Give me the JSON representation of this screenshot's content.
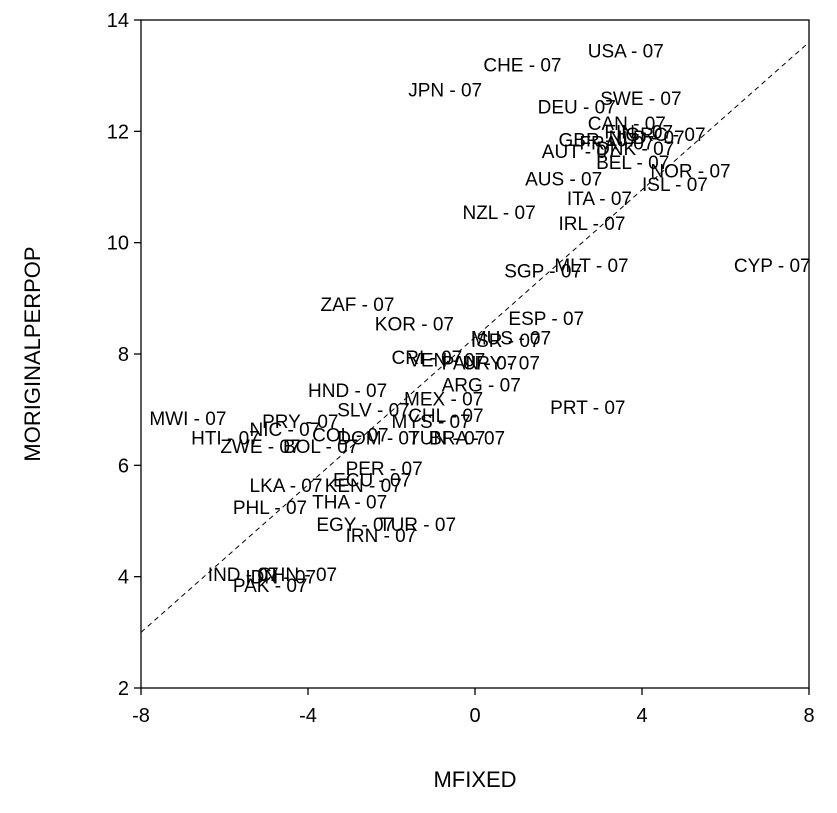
{
  "chart_data": {
    "type": "scatter",
    "xlabel": "MFIXED",
    "ylabel": "MORIGINALPERPOP",
    "xlim": [
      -8,
      8
    ],
    "ylim": [
      2,
      14
    ],
    "xticks": [
      -8,
      -4,
      0,
      4,
      8
    ],
    "yticks": [
      2,
      4,
      6,
      8,
      10,
      12,
      14
    ],
    "grid": false,
    "markers": "text labels",
    "reference_line": {
      "style": "dashed",
      "from": [
        -8,
        3.0
      ],
      "to": [
        8,
        13.6
      ]
    },
    "points": [
      {
        "label": "USA - 07",
        "x": 2.7,
        "y": 13.45
      },
      {
        "label": "CHE - 07",
        "x": 0.2,
        "y": 13.2
      },
      {
        "label": "JPN - 07",
        "x": -1.6,
        "y": 12.75
      },
      {
        "label": "SWE - 07",
        "x": 3.0,
        "y": 12.6
      },
      {
        "label": "DEU - 07",
        "x": 1.5,
        "y": 12.45
      },
      {
        "label": "CAN - 07",
        "x": 2.7,
        "y": 12.15
      },
      {
        "label": "FIN - 07",
        "x": 3.1,
        "y": 12.0
      },
      {
        "label": "GRC - 07",
        "x": 3.6,
        "y": 11.95
      },
      {
        "label": "NLD - 07",
        "x": 3.2,
        "y": 11.9
      },
      {
        "label": "GBR - 07",
        "x": 2.0,
        "y": 11.85
      },
      {
        "label": "FRA - 07",
        "x": 2.5,
        "y": 11.8
      },
      {
        "label": "AUT - 07",
        "x": 1.6,
        "y": 11.65
      },
      {
        "label": "DNK - 07",
        "x": 2.9,
        "y": 11.7
      },
      {
        "label": "BEL - 07",
        "x": 2.9,
        "y": 11.45
      },
      {
        "label": "NOR - 07",
        "x": 4.2,
        "y": 11.3
      },
      {
        "label": "AUS - 07",
        "x": 1.2,
        "y": 11.15
      },
      {
        "label": "ISL - 07",
        "x": 4.0,
        "y": 11.05
      },
      {
        "label": "ITA - 07",
        "x": 2.2,
        "y": 10.8
      },
      {
        "label": "NZL - 07",
        "x": -0.3,
        "y": 10.55
      },
      {
        "label": "IRL - 07",
        "x": 2.0,
        "y": 10.35
      },
      {
        "label": "MLT - 07",
        "x": 1.9,
        "y": 9.6
      },
      {
        "label": "CYP - 07",
        "x": 6.2,
        "y": 9.6
      },
      {
        "label": "SGP - 07",
        "x": 0.7,
        "y": 9.5
      },
      {
        "label": "ZAF - 07",
        "x": -3.7,
        "y": 8.9
      },
      {
        "label": "ESP - 07",
        "x": 0.8,
        "y": 8.65
      },
      {
        "label": "KOR - 07",
        "x": -2.4,
        "y": 8.55
      },
      {
        "label": "MUS - 07",
        "x": -0.1,
        "y": 8.3
      },
      {
        "label": "ISR - 07",
        "x": -0.1,
        "y": 8.25
      },
      {
        "label": "CRI - 07",
        "x": -2.0,
        "y": 7.95
      },
      {
        "label": "VEN - 07",
        "x": -1.6,
        "y": 7.9
      },
      {
        "label": "PAN - 07",
        "x": -0.8,
        "y": 7.85
      },
      {
        "label": "URY - 07",
        "x": -0.3,
        "y": 7.85
      },
      {
        "label": "ARG - 07",
        "x": -0.8,
        "y": 7.45
      },
      {
        "label": "HND - 07",
        "x": -4.0,
        "y": 7.35
      },
      {
        "label": "MEX - 07",
        "x": -1.7,
        "y": 7.2
      },
      {
        "label": "PRT - 07",
        "x": 1.8,
        "y": 7.05
      },
      {
        "label": "SLV - 07",
        "x": -3.3,
        "y": 7.0
      },
      {
        "label": "MWI - 07",
        "x": -7.8,
        "y": 6.85
      },
      {
        "label": "CHL - 07",
        "x": -1.6,
        "y": 6.9
      },
      {
        "label": "PRY - 07",
        "x": -5.1,
        "y": 6.8
      },
      {
        "label": "MYS - 07",
        "x": -2.0,
        "y": 6.8
      },
      {
        "label": "NIC - 07",
        "x": -5.4,
        "y": 6.65
      },
      {
        "label": "BRA - 07",
        "x": -1.1,
        "y": 6.5
      },
      {
        "label": "HTI - 07",
        "x": -6.8,
        "y": 6.5
      },
      {
        "label": "COL - 07",
        "x": -3.9,
        "y": 6.55
      },
      {
        "label": "DOM - 07",
        "x": -3.3,
        "y": 6.5
      },
      {
        "label": "TUN - 07",
        "x": -1.6,
        "y": 6.5
      },
      {
        "label": "ZWE - 07",
        "x": -6.1,
        "y": 6.35
      },
      {
        "label": "BOL - 07",
        "x": -4.6,
        "y": 6.35
      },
      {
        "label": "PER - 07",
        "x": -3.1,
        "y": 5.95
      },
      {
        "label": "LKA - 07",
        "x": -5.4,
        "y": 5.65
      },
      {
        "label": "KEN - 07",
        "x": -3.6,
        "y": 5.65
      },
      {
        "label": "ECU - 07",
        "x": -3.4,
        "y": 5.75
      },
      {
        "label": "THA - 07",
        "x": -3.9,
        "y": 5.35
      },
      {
        "label": "PHL - 07",
        "x": -5.8,
        "y": 5.25
      },
      {
        "label": "EGY - 07",
        "x": -3.8,
        "y": 4.95
      },
      {
        "label": "TUR - 07",
        "x": -2.3,
        "y": 4.95
      },
      {
        "label": "IRN - 07",
        "x": -3.1,
        "y": 4.75
      },
      {
        "label": "IND - 07",
        "x": -6.4,
        "y": 4.05
      },
      {
        "label": "CHN - 07",
        "x": -5.2,
        "y": 4.05
      },
      {
        "label": "IDN - 07",
        "x": -5.5,
        "y": 4.0
      },
      {
        "label": "PAK - 07",
        "x": -5.8,
        "y": 3.85
      }
    ]
  }
}
